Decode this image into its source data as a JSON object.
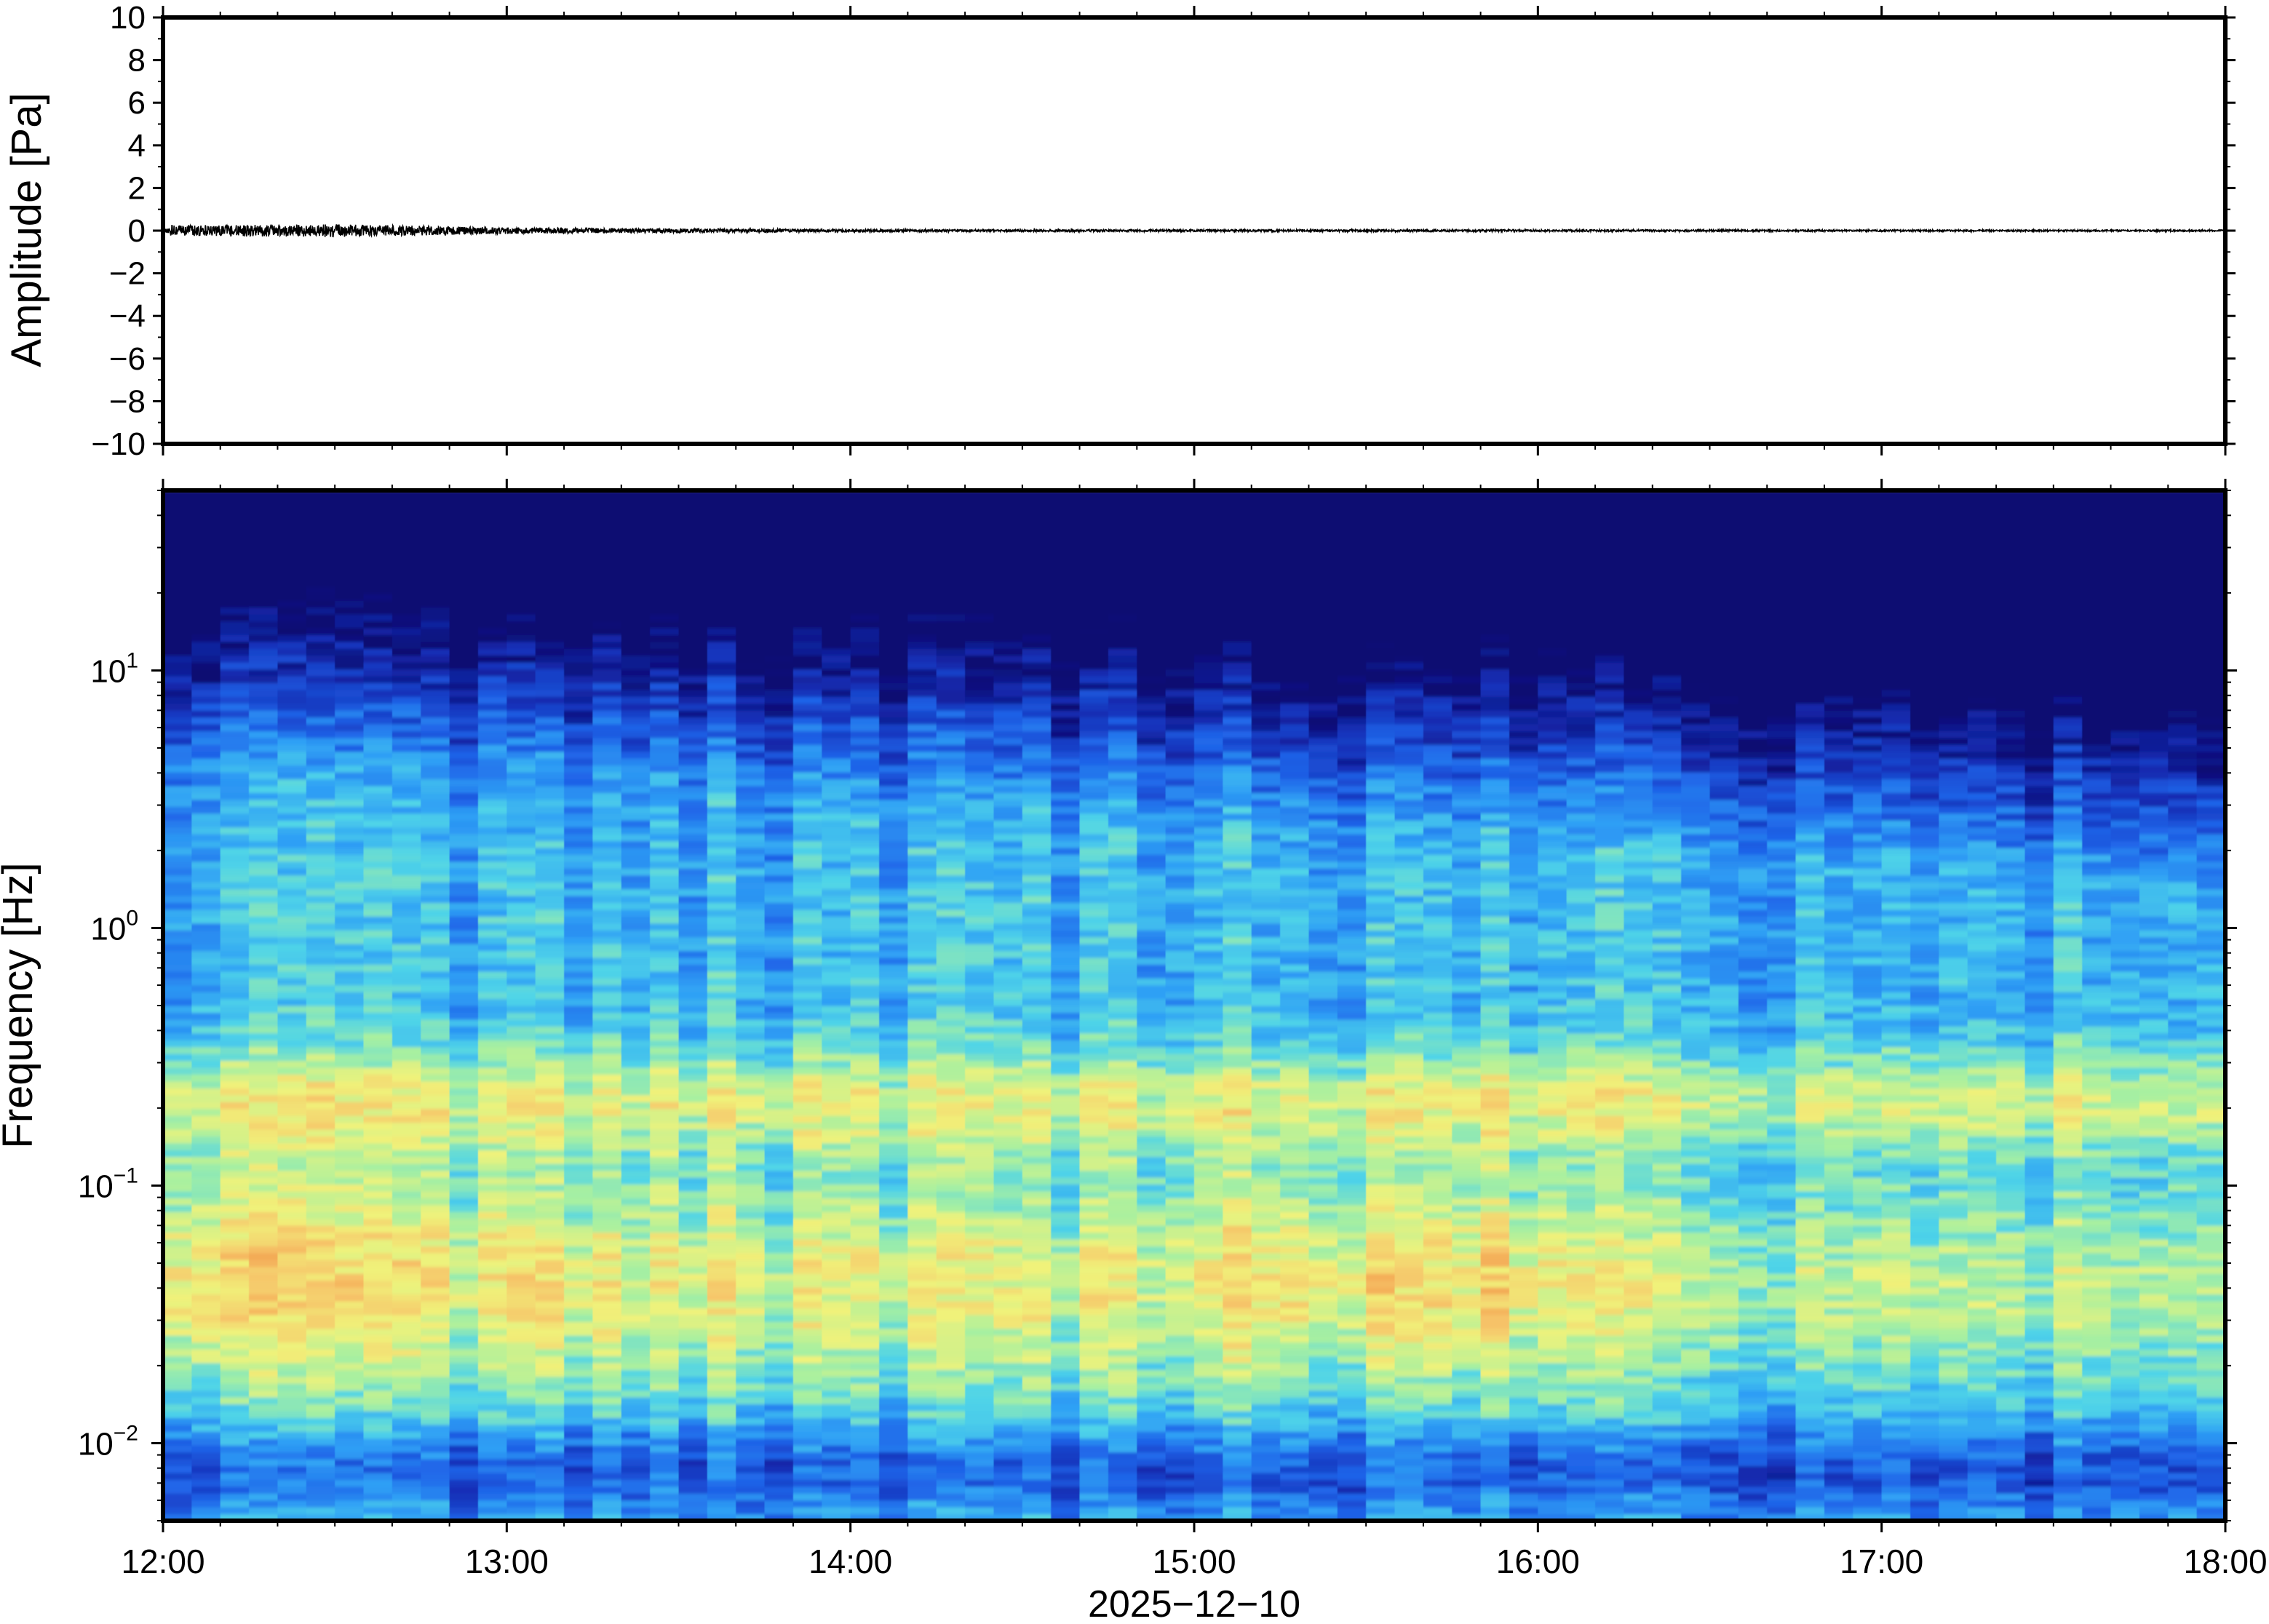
{
  "chart_data": [
    {
      "type": "line",
      "ylabel": "Amplitude [Pa]",
      "ylim": [
        -10,
        10
      ],
      "yticks": [
        10,
        8,
        6,
        4,
        2,
        0,
        -2,
        -4,
        -6,
        -8,
        -10
      ],
      "ytick_labels": [
        "10",
        "8",
        "6",
        "4",
        "2",
        "0",
        "−2",
        "−4",
        "−6",
        "−8",
        "−10"
      ],
      "xlim": [
        "12:00",
        "18:00"
      ],
      "series": [
        {
          "color": "#000000",
          "description": "pressure trace near zero; peak deviation roughly ±0.3 Pa between 12:00 and 13:00, decaying to ±0.05 Pa after 13:30",
          "envelope": {
            "t": [
              "12:00",
              "12:30",
              "13:00",
              "13:30",
              "14:00",
              "15:00",
              "16:00",
              "17:00",
              "18:00"
            ],
            "amp": [
              0.25,
              0.3,
              0.15,
              0.1,
              0.06,
              0.05,
              0.05,
              0.04,
              0.04
            ]
          }
        }
      ],
      "grid": false
    },
    {
      "type": "heatmap",
      "ylabel": "Frequency [Hz]",
      "yscale": "log",
      "ylim": [
        0.005,
        50
      ],
      "yticks": [
        10,
        1,
        0.1,
        0.01
      ],
      "ytick_labels": [
        {
          "base": "10",
          "exp": "1"
        },
        {
          "base": "10",
          "exp": "0"
        },
        {
          "base": "10",
          "exp": "−1"
        },
        {
          "base": "10",
          "exp": "−2"
        }
      ],
      "x_tick_labels": [
        "12:00",
        "13:00",
        "14:00",
        "15:00",
        "16:00",
        "17:00",
        "18:00"
      ],
      "xlabel": "2025−12−10",
      "colormap": [
        "#0b0a72",
        "#1530b8",
        "#1f63e8",
        "#2fa0f5",
        "#4fd4e8",
        "#a8f0a0",
        "#f0f27a",
        "#f6c56a",
        "#f08a3c"
      ],
      "features": {
        "microbarom_band_hz": [
          0.15,
          0.3
        ],
        "high_power_low_freq_hz": [
          0.02,
          0.08
        ],
        "upper_cutoff_hz_at_start": 15,
        "upper_cutoff_hz_at_end": 5
      },
      "grid": false
    }
  ]
}
